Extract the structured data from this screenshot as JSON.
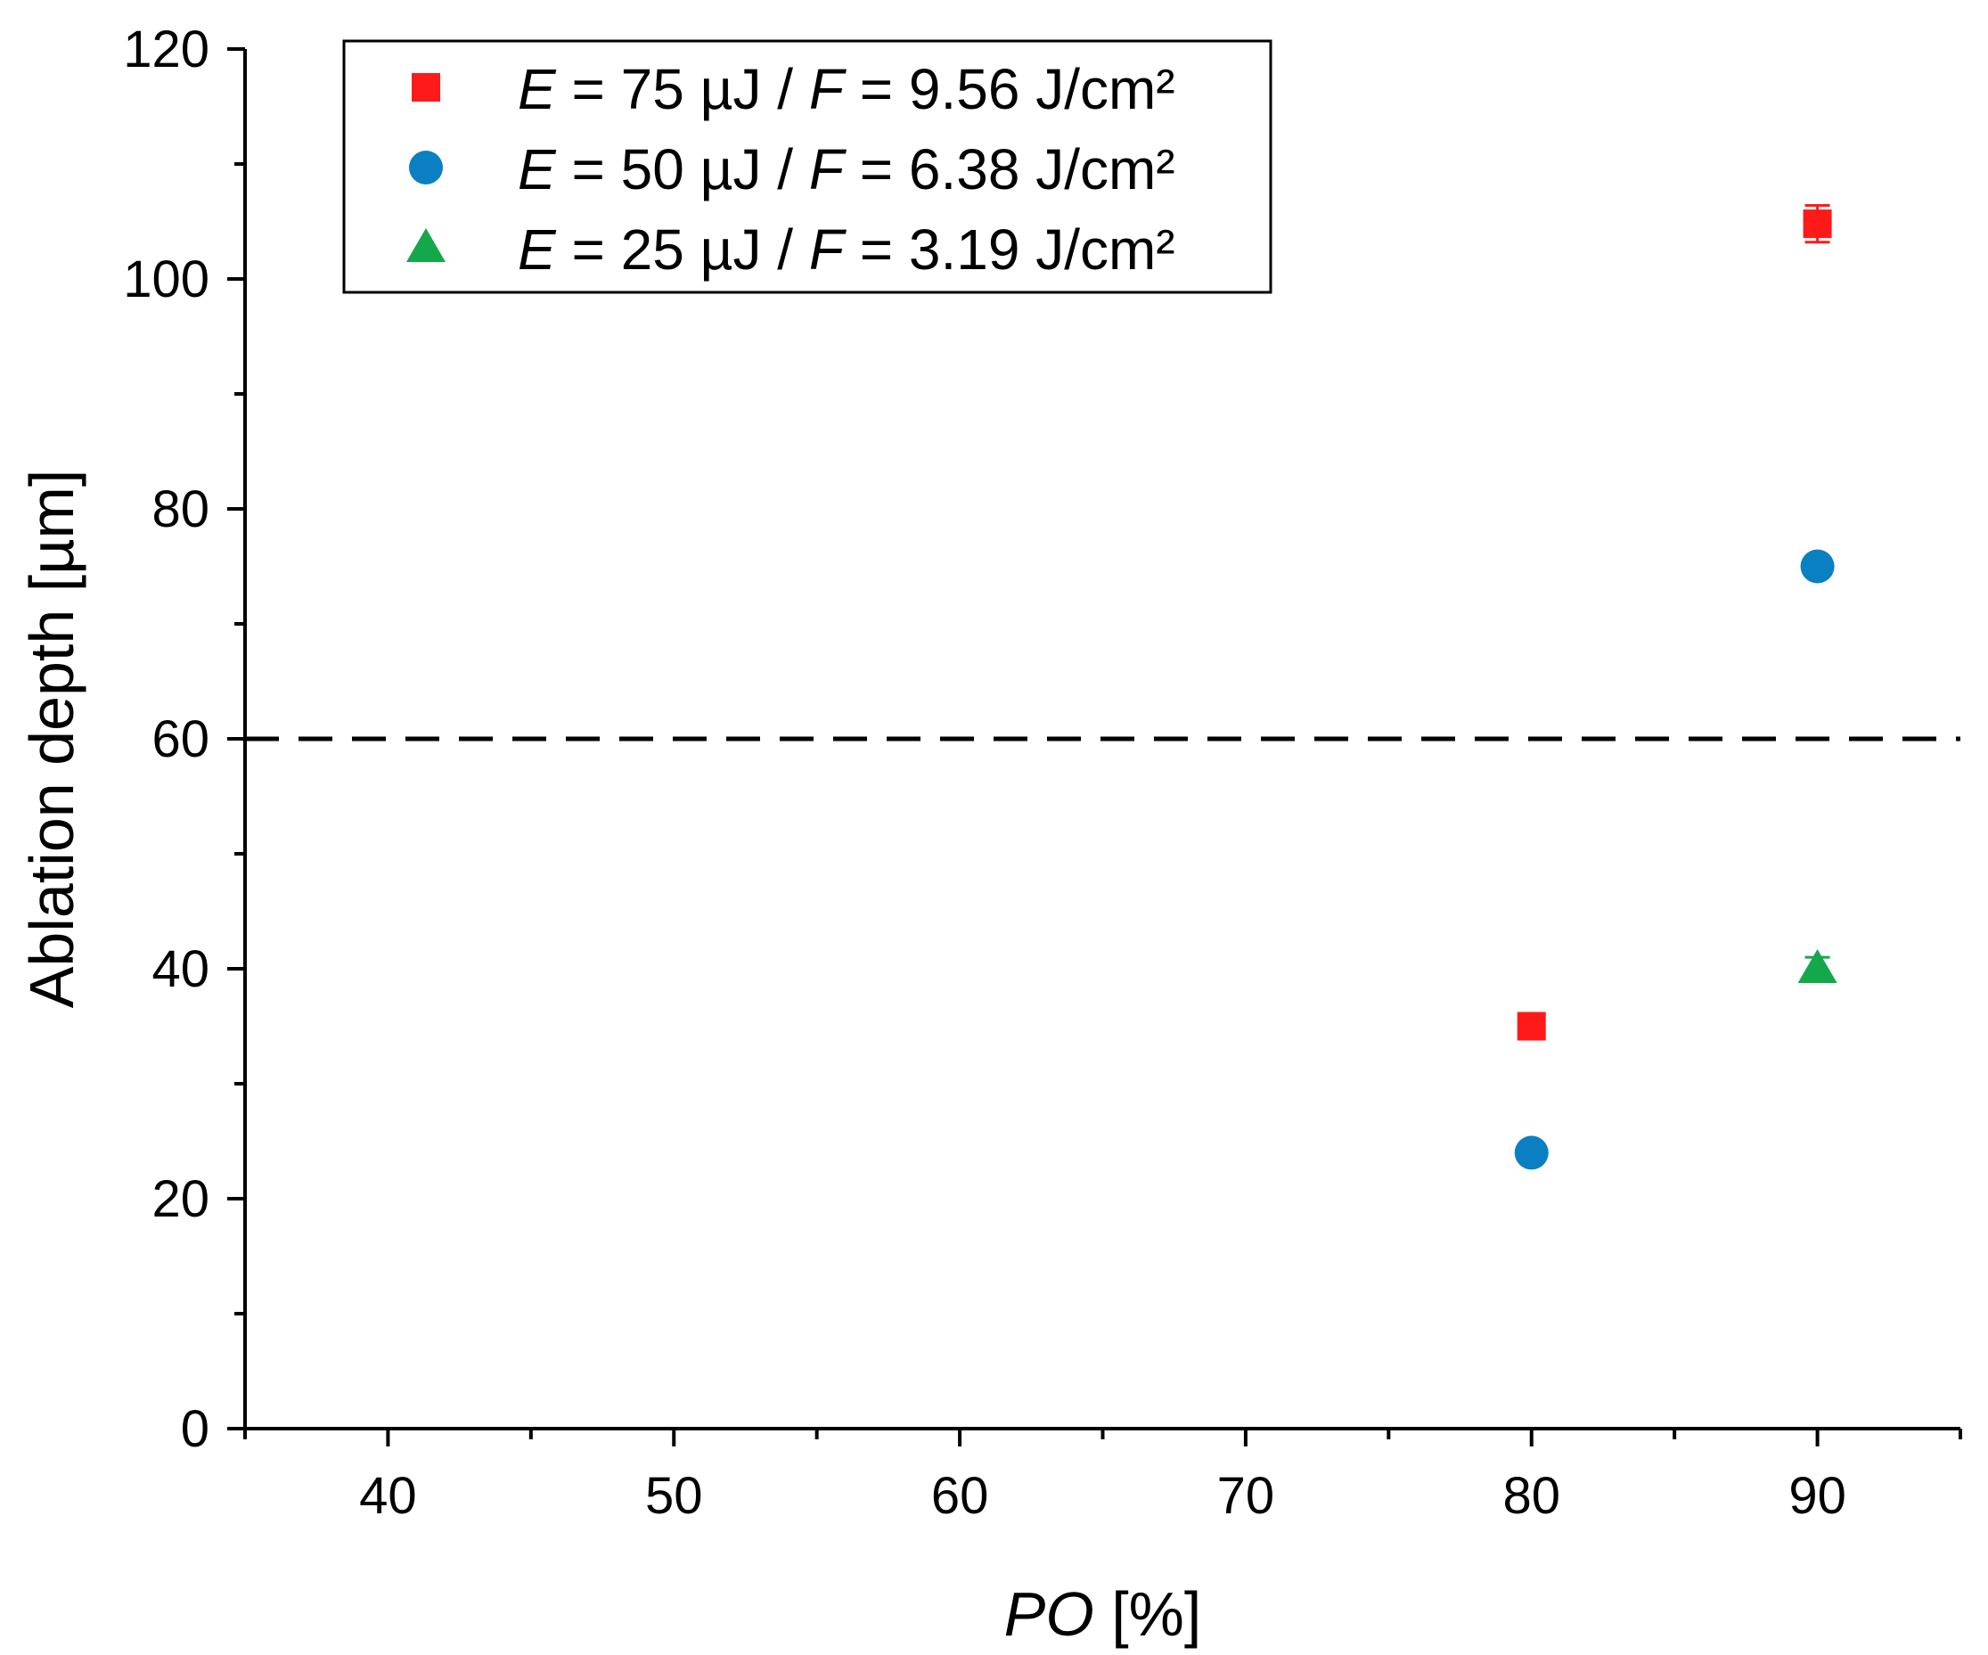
{
  "chart_data": {
    "type": "scatter",
    "title": "",
    "xlabel_italic": "PO",
    "xlabel_rest": " [%]",
    "ylabel": "Ablation depth [µm]",
    "xlim": [
      35,
      95
    ],
    "ylim": [
      0,
      120
    ],
    "x_ticks": [
      40,
      50,
      60,
      70,
      80,
      90
    ],
    "y_ticks": [
      0,
      20,
      40,
      60,
      80,
      100,
      120
    ],
    "x_minor_ticks": [
      35,
      45,
      55,
      65,
      75,
      85,
      95
    ],
    "y_minor_ticks": [
      10,
      30,
      50,
      70,
      90,
      110
    ],
    "reference_line": {
      "y": 60,
      "style": "dashed",
      "color": "#000000"
    },
    "legend_position": "top-left",
    "series": [
      {
        "name": "E = 75 µJ / F = 9.56 J/cm²",
        "legend": {
          "e_symbol": "E",
          "e_value": " = 75 µJ / ",
          "f_symbol": "F",
          "f_value": " = 9.56 J/cm²"
        },
        "marker": "square",
        "color": "#ff1a1a",
        "points": [
          {
            "x": 80,
            "y": 35,
            "err": 0.6
          },
          {
            "x": 90,
            "y": 104.8,
            "err": 1.6
          }
        ]
      },
      {
        "name": "E = 50 µJ / F = 6.38 J/cm²",
        "legend": {
          "e_symbol": "E",
          "e_value": " = 50 µJ / ",
          "f_symbol": "F",
          "f_value": " = 6.38 J/cm²"
        },
        "marker": "circle",
        "color": "#0a7fc2",
        "points": [
          {
            "x": 80,
            "y": 24,
            "err": 0.4
          },
          {
            "x": 90,
            "y": 75,
            "err": 0.5
          }
        ]
      },
      {
        "name": "E = 25 µJ / F = 3.19 J/cm²",
        "legend": {
          "e_symbol": "E",
          "e_value": " = 25 µJ / ",
          "f_symbol": "F",
          "f_value": " = 3.19 J/cm²"
        },
        "marker": "triangle",
        "color": "#14a84a",
        "points": [
          {
            "x": 90,
            "y": 40,
            "err": 1.0
          }
        ]
      }
    ]
  }
}
